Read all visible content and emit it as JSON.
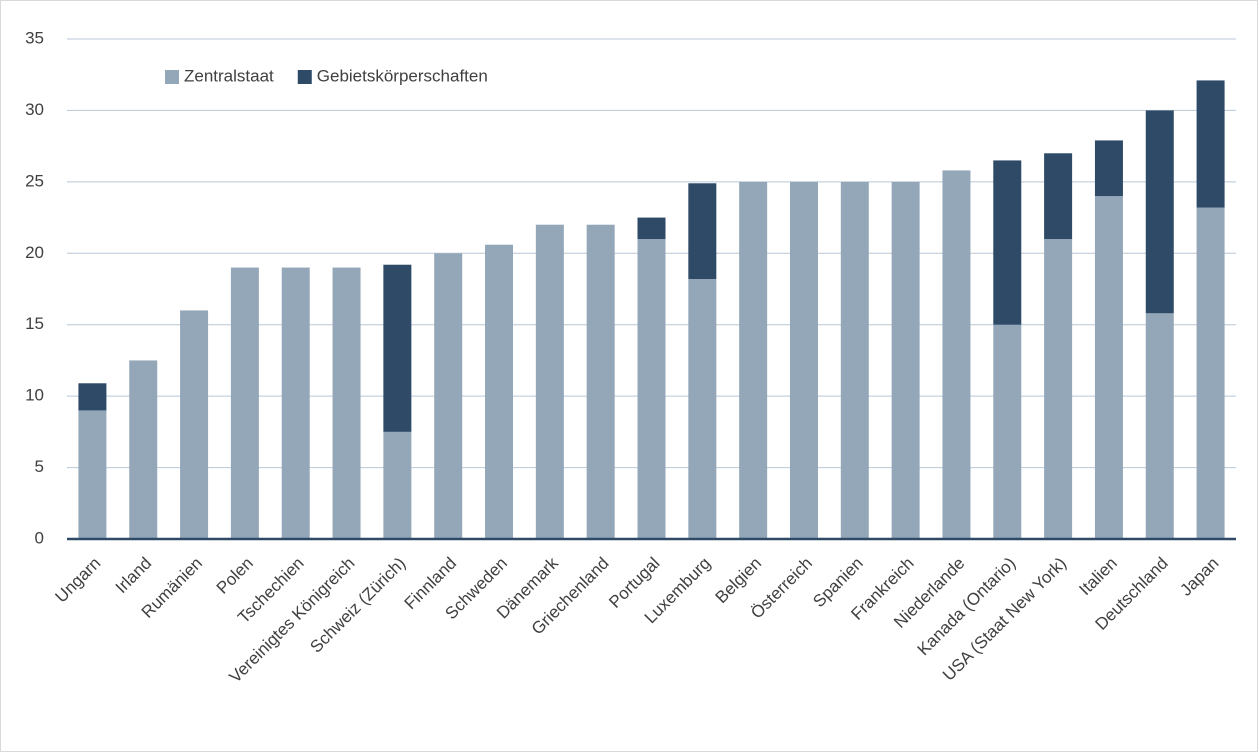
{
  "chart_data": {
    "type": "stacked_bar",
    "categories": [
      "Ungarn",
      "Irland",
      "Rumänien",
      "Polen",
      "Tschechien",
      "Vereinigtes Königreich",
      "Schweiz (Zürich)",
      "Finnland",
      "Schweden",
      "Dänemark",
      "Griechenland",
      "Portugal",
      "Luxemburg",
      "Belgien",
      "Österreich",
      "Spanien",
      "Frankreich",
      "Niederlande",
      "Kanada (Ontario)",
      "USA (Staat New York)",
      "Italien",
      "Deutschland",
      "Japan"
    ],
    "series": [
      {
        "name": "Zentralstaat",
        "color": "#94a7b9",
        "values": [
          9,
          12.5,
          16,
          19,
          19,
          19,
          7.5,
          20,
          20.6,
          22,
          22,
          21,
          18.2,
          25,
          25,
          25,
          25,
          25.8,
          15,
          21,
          24,
          15.8,
          23.2
        ]
      },
      {
        "name": "Gebietskörperschaften",
        "color": "#2e4a66",
        "values": [
          1.9,
          0,
          0,
          0,
          0,
          0,
          11.7,
          0,
          0,
          0,
          0,
          1.5,
          6.7,
          0,
          0,
          0,
          0,
          0,
          11.5,
          6,
          3.9,
          14.2,
          8.9
        ]
      }
    ],
    "ylim": [
      0,
      35
    ],
    "yticks": [
      0,
      5,
      10,
      15,
      20,
      25,
      30,
      35
    ],
    "grid": true,
    "legend": "upper left"
  }
}
